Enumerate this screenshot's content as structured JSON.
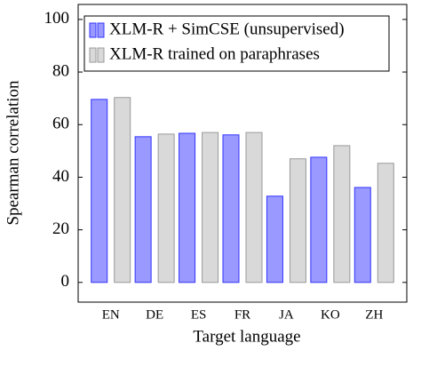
{
  "chart_data": {
    "type": "bar",
    "categories": [
      "EN",
      "DE",
      "ES",
      "FR",
      "JA",
      "KO",
      "ZH"
    ],
    "series": [
      {
        "name": "XLM-R + SimCSE (unsupervised)",
        "color": "#9999ff",
        "values": [
          69.6,
          55.4,
          56.7,
          56.1,
          32.8,
          47.6,
          36.1
        ]
      },
      {
        "name": "XLM-R trained on paraphrases",
        "color": "#d9d9d9",
        "values": [
          70.3,
          56.4,
          57.0,
          57.0,
          47.0,
          52.0,
          45.3
        ]
      }
    ],
    "xlabel": "Target language",
    "ylabel": "Spearman correlation",
    "ylim": [
      -7.5,
      105.7
    ],
    "yticks": [
      0,
      20,
      40,
      60,
      80,
      100
    ],
    "legend": "top-left"
  }
}
